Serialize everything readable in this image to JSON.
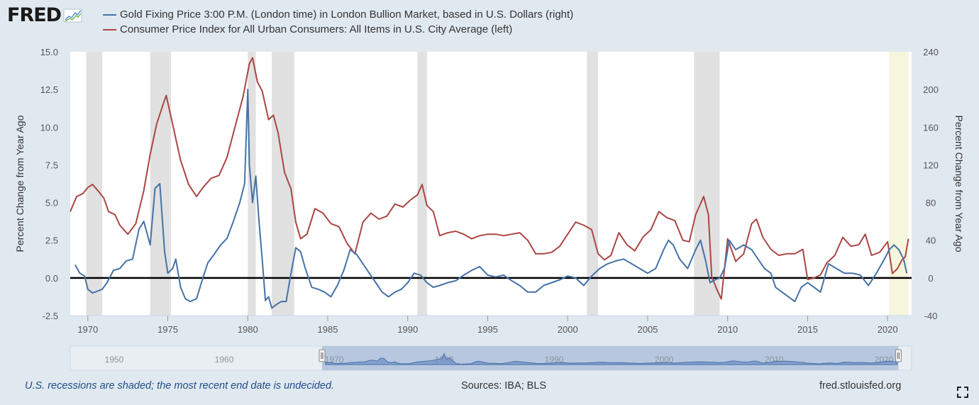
{
  "brand": {
    "logo_text": "FRED"
  },
  "legend": {
    "series_gold": "Gold Fixing Price 3:00 P.M. (London time) in London Bullion Market, based in U.S. Dollars (right)",
    "series_cpi": "Consumer Price Index for All Urban Consumers: All Items in U.S. City Average (left)"
  },
  "footer": {
    "note": "U.S. recessions are shaded; the most recent end date is undecided.",
    "sources": "Sources: IBA; BLS",
    "url": "fred.stlouisfed.org"
  },
  "colors": {
    "gold": "#4572a7",
    "cpi": "#aa4643",
    "recession": "#e1e1e1",
    "undecided": "#f6f6dc",
    "background": "#e1e9f0"
  },
  "chart_data": {
    "type": "line",
    "x_range": [
      1968.9,
      2021.5
    ],
    "x_ticks": [
      "1970",
      "1975",
      "1980",
      "1985",
      "1990",
      "1995",
      "2000",
      "2005",
      "2010",
      "2015",
      "2020"
    ],
    "y_left": {
      "label": "Percent Change from Year Ago",
      "range": [
        -2.5,
        15.0
      ],
      "ticks": [
        "-2.5",
        "0.0",
        "2.5",
        "5.0",
        "7.5",
        "10.0",
        "12.5",
        "15.0"
      ]
    },
    "y_right": {
      "label": "Percent Change from Year Ago",
      "range": [
        -40,
        240
      ],
      "ticks": [
        "-40",
        "0",
        "40",
        "80",
        "120",
        "160",
        "200",
        "240"
      ]
    },
    "zero_line": 0,
    "recessions": [
      [
        1969.9,
        1970.9
      ],
      [
        1973.9,
        1975.2
      ],
      [
        1980.0,
        1980.5
      ],
      [
        1981.5,
        1982.9
      ],
      [
        1990.6,
        1991.2
      ],
      [
        2001.2,
        2001.9
      ],
      [
        2007.9,
        2009.5
      ]
    ],
    "undecided_shade": [
      2020.1,
      2021.3
    ],
    "series": [
      {
        "name": "CPI (left axis, %)",
        "axis": "left",
        "x": [
          1968.9,
          1969.3,
          1969.7,
          1970.0,
          1970.3,
          1970.7,
          1971.0,
          1971.3,
          1971.7,
          1972.0,
          1972.5,
          1973.0,
          1973.5,
          1973.9,
          1974.3,
          1974.7,
          1974.9,
          1975.3,
          1975.8,
          1976.3,
          1976.8,
          1977.2,
          1977.7,
          1978.2,
          1978.7,
          1979.2,
          1979.7,
          1980.1,
          1980.3,
          1980.6,
          1980.9,
          1981.3,
          1981.6,
          1981.9,
          1982.3,
          1982.7,
          1983.0,
          1983.3,
          1983.7,
          1984.2,
          1984.7,
          1985.2,
          1985.7,
          1986.2,
          1986.7,
          1987.2,
          1987.7,
          1988.2,
          1988.7,
          1989.2,
          1989.7,
          1990.2,
          1990.6,
          1990.9,
          1991.2,
          1991.6,
          1992.0,
          1992.5,
          1993.0,
          1993.5,
          1994.0,
          1994.5,
          1995.0,
          1995.5,
          1996.0,
          1996.5,
          1997.0,
          1997.5,
          1998.0,
          1998.5,
          1999.0,
          1999.5,
          2000.0,
          2000.5,
          2001.0,
          2001.5,
          2001.9,
          2002.3,
          2002.7,
          2003.2,
          2003.7,
          2004.2,
          2004.7,
          2005.2,
          2005.7,
          2006.2,
          2006.7,
          2007.2,
          2007.6,
          2008.0,
          2008.5,
          2008.8,
          2009.0,
          2009.3,
          2009.6,
          2010.0,
          2010.5,
          2011.0,
          2011.5,
          2011.8,
          2012.2,
          2012.7,
          2013.2,
          2013.7,
          2014.2,
          2014.7,
          2015.0,
          2015.4,
          2015.8,
          2016.2,
          2016.7,
          2017.2,
          2017.7,
          2018.2,
          2018.6,
          2019.0,
          2019.5,
          2020.0,
          2020.3,
          2020.6,
          2020.9,
          2021.1,
          2021.3
        ],
        "values": [
          4.4,
          5.4,
          5.6,
          6.0,
          6.2,
          5.7,
          5.3,
          4.4,
          4.2,
          3.5,
          2.9,
          3.6,
          5.8,
          8.2,
          10.2,
          11.5,
          12.1,
          10.2,
          7.8,
          6.2,
          5.4,
          6.0,
          6.6,
          6.8,
          8.0,
          10.0,
          12.0,
          14.2,
          14.6,
          13.0,
          12.4,
          10.5,
          10.8,
          9.6,
          7.0,
          5.9,
          3.7,
          2.6,
          2.9,
          4.6,
          4.3,
          3.6,
          3.4,
          2.3,
          1.6,
          3.7,
          4.3,
          3.9,
          4.1,
          4.9,
          4.7,
          5.2,
          5.5,
          6.2,
          4.8,
          4.4,
          2.8,
          3.0,
          3.1,
          2.9,
          2.6,
          2.8,
          2.9,
          2.9,
          2.8,
          2.9,
          3.0,
          2.5,
          1.6,
          1.6,
          1.7,
          2.1,
          2.9,
          3.7,
          3.5,
          3.2,
          1.6,
          1.2,
          1.5,
          3.0,
          2.2,
          1.8,
          2.7,
          3.2,
          4.4,
          4.0,
          3.8,
          2.5,
          2.4,
          4.2,
          5.4,
          4.2,
          0.1,
          -0.7,
          -1.4,
          2.6,
          1.1,
          1.6,
          3.6,
          3.9,
          2.7,
          1.9,
          1.5,
          1.6,
          1.6,
          1.9,
          -0.1,
          0.0,
          0.2,
          1.0,
          1.5,
          2.7,
          2.1,
          2.2,
          2.9,
          1.5,
          1.7,
          2.4,
          0.3,
          0.6,
          1.2,
          1.4,
          2.6
        ]
      },
      {
        "name": "Gold (right axis, %)",
        "axis": "right",
        "x": [
          1969.2,
          1969.5,
          1969.8,
          1970.0,
          1970.3,
          1970.6,
          1970.9,
          1971.2,
          1971.6,
          1972.0,
          1972.4,
          1972.8,
          1973.2,
          1973.5,
          1973.9,
          1974.2,
          1974.5,
          1974.8,
          1975.0,
          1975.3,
          1975.5,
          1975.8,
          1976.1,
          1976.4,
          1976.8,
          1977.1,
          1977.5,
          1977.9,
          1978.3,
          1978.7,
          1979.1,
          1979.5,
          1979.8,
          1980.0,
          1980.1,
          1980.3,
          1980.5,
          1980.7,
          1980.9,
          1981.1,
          1981.3,
          1981.5,
          1981.8,
          1982.1,
          1982.4,
          1982.7,
          1983.0,
          1983.3,
          1983.6,
          1984.0,
          1984.4,
          1984.8,
          1985.2,
          1985.6,
          1986.0,
          1986.4,
          1986.8,
          1987.2,
          1987.6,
          1988.0,
          1988.4,
          1988.8,
          1989.2,
          1989.6,
          1990.0,
          1990.4,
          1990.8,
          1991.2,
          1991.6,
          1992.0,
          1992.5,
          1993.0,
          1993.5,
          1994.0,
          1994.5,
          1995.0,
          1995.5,
          1996.0,
          1996.5,
          1997.0,
          1997.5,
          1998.0,
          1998.5,
          1999.0,
          1999.5,
          2000.0,
          2000.5,
          2001.0,
          2001.5,
          2002.0,
          2002.5,
          2003.0,
          2003.5,
          2004.0,
          2004.5,
          2005.0,
          2005.5,
          2006.0,
          2006.3,
          2006.6,
          2007.0,
          2007.5,
          2008.0,
          2008.3,
          2008.6,
          2008.9,
          2009.2,
          2009.5,
          2009.8,
          2010.1,
          2010.5,
          2011.0,
          2011.5,
          2011.9,
          2012.3,
          2012.7,
          2013.0,
          2013.4,
          2013.8,
          2014.2,
          2014.6,
          2015.0,
          2015.4,
          2015.8,
          2016.3,
          2016.8,
          2017.3,
          2017.8,
          2018.3,
          2018.8,
          2019.3,
          2019.8,
          2020.1,
          2020.4,
          2020.7,
          2021.0,
          2021.2
        ],
        "values": [
          14,
          5,
          2,
          -12,
          -16,
          -14,
          -12,
          -5,
          8,
          10,
          18,
          20,
          52,
          60,
          35,
          95,
          100,
          28,
          5,
          10,
          20,
          -10,
          -22,
          -25,
          -22,
          -5,
          16,
          25,
          35,
          42,
          60,
          80,
          100,
          200,
          120,
          80,
          108,
          60,
          20,
          -24,
          -20,
          -32,
          -28,
          -25,
          -25,
          5,
          32,
          28,
          10,
          -10,
          -12,
          -15,
          -20,
          -8,
          8,
          30,
          25,
          15,
          5,
          -5,
          -15,
          -20,
          -15,
          -12,
          -5,
          5,
          3,
          -5,
          -10,
          -8,
          -5,
          -3,
          3,
          8,
          12,
          3,
          1,
          3,
          -3,
          -8,
          -15,
          -15,
          -8,
          -5,
          -2,
          2,
          0,
          -8,
          2,
          10,
          15,
          18,
          20,
          15,
          10,
          5,
          10,
          30,
          40,
          35,
          20,
          10,
          30,
          40,
          20,
          -5,
          -2,
          0,
          10,
          40,
          30,
          35,
          30,
          20,
          10,
          5,
          -10,
          -15,
          -20,
          -25,
          -10,
          -5,
          -10,
          -15,
          15,
          10,
          5,
          5,
          3,
          -8,
          5,
          20,
          30,
          35,
          30,
          20,
          5
        ]
      }
    ],
    "navigator": {
      "x_range": [
        1946.0,
        2022.5
      ],
      "labels": [
        "1950",
        "1960",
        "1970",
        "1980",
        "1990",
        "2000",
        "2010",
        "2020"
      ],
      "selected": [
        1968.9,
        2021.3
      ]
    }
  }
}
